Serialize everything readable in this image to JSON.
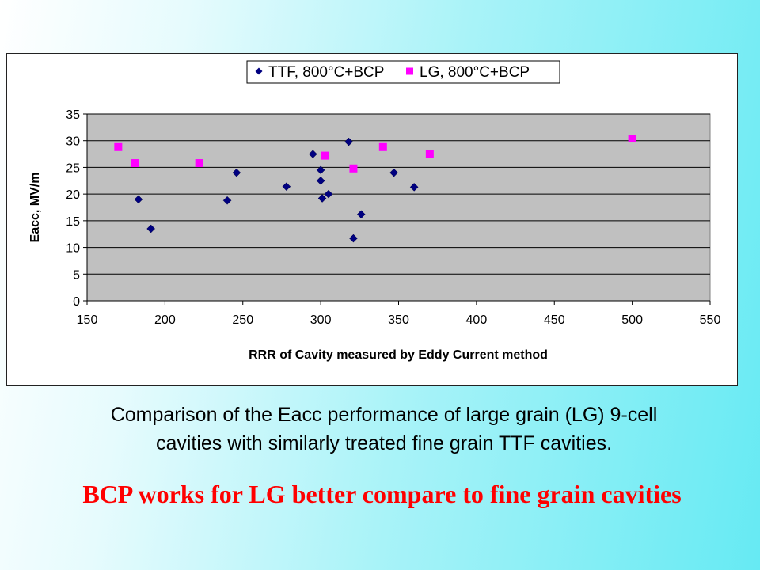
{
  "chart_data": {
    "type": "scatter",
    "title": "",
    "xlabel": "RRR of Cavity measured by Eddy Current method",
    "ylabel": "Eacc, MV/m",
    "xlim": [
      150,
      550
    ],
    "ylim": [
      0,
      35
    ],
    "xticks": [
      "150",
      "200",
      "250",
      "300",
      "350",
      "400",
      "450",
      "500",
      "550"
    ],
    "yticks": [
      "0",
      "5",
      "10",
      "15",
      "20",
      "25",
      "30",
      "35"
    ],
    "grid": "horizontal",
    "legend_position": "top",
    "plot_background": "#c0c0c0",
    "series": [
      {
        "name": "TTF, 800°C+BCP",
        "marker": "diamond",
        "color": "#000080",
        "points": [
          {
            "x": 183,
            "y": 19
          },
          {
            "x": 191,
            "y": 13.5
          },
          {
            "x": 240,
            "y": 18.8
          },
          {
            "x": 246,
            "y": 24
          },
          {
            "x": 278,
            "y": 21.4
          },
          {
            "x": 295,
            "y": 27.5
          },
          {
            "x": 300,
            "y": 24.5
          },
          {
            "x": 300,
            "y": 22.5
          },
          {
            "x": 301,
            "y": 19.2
          },
          {
            "x": 305,
            "y": 20
          },
          {
            "x": 318,
            "y": 29.8
          },
          {
            "x": 321,
            "y": 11.7
          },
          {
            "x": 326,
            "y": 16.2
          },
          {
            "x": 347,
            "y": 24
          },
          {
            "x": 360,
            "y": 21.3
          }
        ]
      },
      {
        "name": "LG, 800°C+BCP",
        "marker": "square",
        "color": "#ff00ff",
        "points": [
          {
            "x": 170,
            "y": 28.8
          },
          {
            "x": 181,
            "y": 25.8
          },
          {
            "x": 222,
            "y": 25.8
          },
          {
            "x": 303,
            "y": 27.2
          },
          {
            "x": 321,
            "y": 24.8
          },
          {
            "x": 340,
            "y": 28.8
          },
          {
            "x": 370,
            "y": 27.5
          },
          {
            "x": 500,
            "y": 30.4
          }
        ]
      }
    ]
  },
  "caption": {
    "line1": "Comparison of the Eacc performance of large grain (LG) 9-cell",
    "line2": "cavities with similarly treated fine grain TTF cavities."
  },
  "conclusion": "BCP works  for LG better compare  to fine grain cavities"
}
